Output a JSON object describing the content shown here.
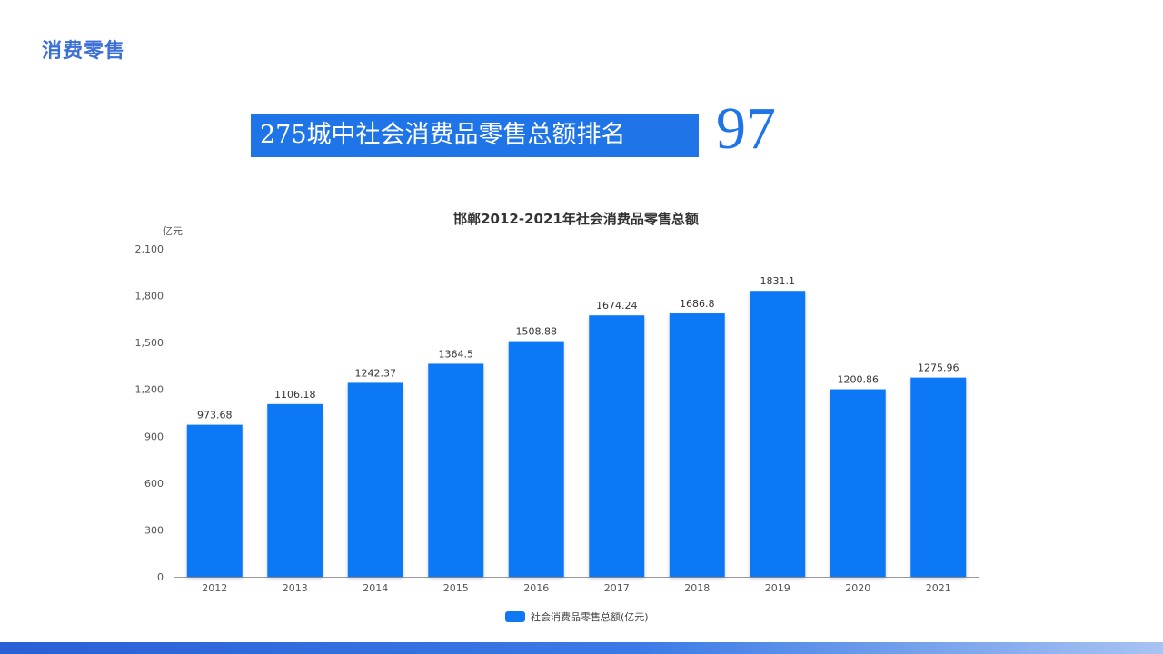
{
  "slide": {
    "title": "消费零售",
    "rank_label": "275城中社会消费品零售总额排名",
    "rank_value": "97"
  },
  "colors": {
    "accent": "#1f74e8",
    "bar": "#0f78f5",
    "title": "#3a6fd8"
  },
  "chart_data": {
    "type": "bar",
    "title": "邯郸2012-2021年社会消费品零售总额",
    "ylabel": "亿元",
    "xlabel": "",
    "categories": [
      "2012",
      "2013",
      "2014",
      "2015",
      "2016",
      "2017",
      "2018",
      "2019",
      "2020",
      "2021"
    ],
    "series": [
      {
        "name": "社会消费品零售总额(亿元)",
        "values": [
          973.68,
          1106.18,
          1242.37,
          1364.5,
          1508.88,
          1674.24,
          1686.8,
          1831.1,
          1200.86,
          1275.96
        ],
        "labels": [
          "973.68",
          "1106.18",
          "1242.37",
          "1364.5",
          "1508.88",
          "1674.24",
          "1686.8",
          "1831.1",
          "1200.86",
          "1275.96"
        ]
      }
    ],
    "ylim": [
      0,
      2100
    ],
    "yticks": [
      0,
      300,
      600,
      900,
      1200,
      1500,
      1800,
      2100
    ],
    "ytick_labels": [
      "0",
      "300",
      "600",
      "900",
      "1,200",
      "1,500",
      "1,800",
      "2,100"
    ],
    "grid": false,
    "legend_position": "bottom-center"
  }
}
